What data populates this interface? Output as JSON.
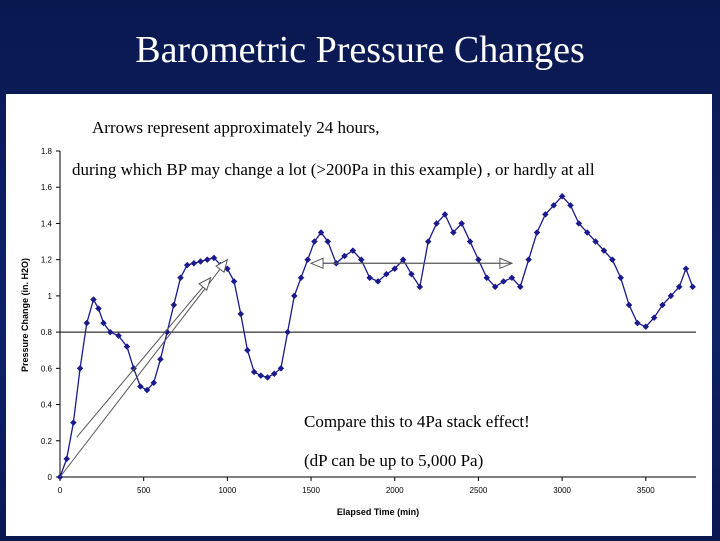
{
  "slide": {
    "title": "Barometric Pressure Changes",
    "annotation_1": "Arrows represent approximately 24 hours,",
    "annotation_2": "during which BP may change a lot (>200Pa in this example) , or hardly at all",
    "annotation_3": "Compare this to 4Pa stack effect!",
    "annotation_4": "(dP can be up to 5,000 Pa)"
  },
  "colors": {
    "background": "#0e2265",
    "series": "#1a1a8c",
    "axis": "#000000"
  },
  "chart_data": {
    "type": "line",
    "title": "",
    "xlabel": "Elapsed Time (min)",
    "ylabel": "Pressure Change (in. H2O)",
    "xlim": [
      0,
      3800
    ],
    "ylim": [
      0,
      1.8
    ],
    "xticks": [
      0,
      500,
      1000,
      1500,
      2000,
      2500,
      3000,
      3500
    ],
    "yticks": [
      0,
      0.2,
      0.4,
      0.6,
      0.8,
      1.0,
      1.2,
      1.4,
      1.6,
      1.8
    ],
    "ytick_labels": [
      "0",
      "0.2",
      "0.4",
      "0.6",
      "0.8",
      "1",
      "1.2",
      "1.4",
      "1.6",
      "1.8"
    ],
    "reference_line_y": 0.8,
    "grid": false,
    "legend": "none",
    "series": [
      {
        "marker": "diamond",
        "x": [
          0,
          40,
          80,
          120,
          160,
          200,
          230,
          260,
          300,
          350,
          400,
          440,
          480,
          520,
          560,
          600,
          640,
          680,
          720,
          760,
          800,
          840,
          880,
          920,
          960,
          1000,
          1040,
          1080,
          1120,
          1160,
          1200,
          1240,
          1280,
          1320,
          1360,
          1400,
          1440,
          1480,
          1520,
          1560,
          1600,
          1650,
          1700,
          1750,
          1800,
          1850,
          1900,
          1950,
          2000,
          2050,
          2100,
          2150,
          2200,
          2250,
          2300,
          2350,
          2400,
          2450,
          2500,
          2550,
          2600,
          2650,
          2700,
          2750,
          2800,
          2850,
          2900,
          2950,
          3000,
          3050,
          3100,
          3150,
          3200,
          3250,
          3300,
          3350,
          3400,
          3450,
          3500,
          3550,
          3600,
          3650,
          3700,
          3740,
          3780
        ],
        "y": [
          0.0,
          0.1,
          0.3,
          0.6,
          0.85,
          0.98,
          0.93,
          0.85,
          0.8,
          0.78,
          0.72,
          0.6,
          0.5,
          0.48,
          0.52,
          0.65,
          0.8,
          0.95,
          1.1,
          1.17,
          1.18,
          1.19,
          1.2,
          1.21,
          1.17,
          1.15,
          1.08,
          0.9,
          0.7,
          0.58,
          0.56,
          0.55,
          0.57,
          0.6,
          0.8,
          1.0,
          1.1,
          1.2,
          1.3,
          1.35,
          1.3,
          1.18,
          1.22,
          1.25,
          1.2,
          1.1,
          1.08,
          1.12,
          1.15,
          1.2,
          1.12,
          1.05,
          1.3,
          1.4,
          1.45,
          1.35,
          1.4,
          1.3,
          1.2,
          1.1,
          1.05,
          1.08,
          1.1,
          1.05,
          1.2,
          1.35,
          1.45,
          1.5,
          1.55,
          1.5,
          1.4,
          1.35,
          1.3,
          1.25,
          1.2,
          1.1,
          0.95,
          0.85,
          0.83,
          0.88,
          0.95,
          1.0,
          1.05,
          1.15,
          1.05
        ]
      }
    ],
    "arrows": [
      {
        "from": [
          0,
          0.0
        ],
        "to": [
          1000,
          1.2
        ]
      },
      {
        "from": [
          100,
          0.22
        ],
        "to": [
          900,
          1.1
        ]
      },
      {
        "from": [
          1500,
          1.18
        ],
        "to": [
          2700,
          1.18
        ]
      },
      {
        "from": [
          2700,
          1.18
        ],
        "to": [
          1500,
          1.18
        ]
      }
    ]
  }
}
